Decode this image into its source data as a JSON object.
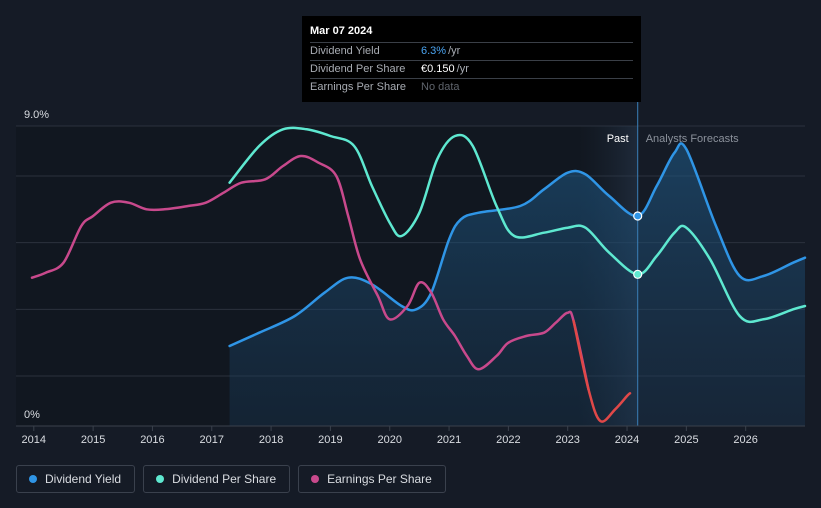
{
  "chart_data": {
    "type": "line",
    "y_axis": {
      "min": 0,
      "max": 9.0,
      "tick_labels": [
        "9.0%",
        "0%"
      ]
    },
    "x_axis": {
      "min": 2013.7,
      "max": 2027.0,
      "tick_labels": [
        "2014",
        "2015",
        "2016",
        "2017",
        "2018",
        "2019",
        "2020",
        "2021",
        "2022",
        "2023",
        "2024",
        "2025",
        "2026"
      ]
    },
    "grid": true,
    "past_label": "Past",
    "forecast_label": "Analysts Forecasts",
    "marker_x": 2024.18,
    "forecast_band_start": 2023.18,
    "series": [
      {
        "name": "Dividend Yield",
        "color": "#2f95e6",
        "points": [
          [
            2017.3,
            2.4
          ],
          [
            2017.8,
            2.8
          ],
          [
            2018.4,
            3.3
          ],
          [
            2018.9,
            4.0
          ],
          [
            2019.3,
            4.45
          ],
          [
            2019.7,
            4.25
          ],
          [
            2020.2,
            3.6
          ],
          [
            2020.45,
            3.5
          ],
          [
            2020.7,
            4.0
          ],
          [
            2021.0,
            5.6
          ],
          [
            2021.2,
            6.2
          ],
          [
            2021.5,
            6.4
          ],
          [
            2022.2,
            6.6
          ],
          [
            2022.6,
            7.1
          ],
          [
            2023.0,
            7.6
          ],
          [
            2023.3,
            7.55
          ],
          [
            2023.7,
            6.9
          ],
          [
            2024.18,
            6.3
          ],
          [
            2024.5,
            7.2
          ],
          [
            2024.8,
            8.2
          ],
          [
            2025.0,
            8.3
          ],
          [
            2025.5,
            6.0
          ],
          [
            2025.9,
            4.5
          ],
          [
            2026.3,
            4.5
          ],
          [
            2026.8,
            4.9
          ],
          [
            2027.0,
            5.05
          ]
        ]
      },
      {
        "name": "Dividend Per Share",
        "color": "#5ee8d0",
        "points": [
          [
            2017.3,
            7.3
          ],
          [
            2017.8,
            8.4
          ],
          [
            2018.2,
            8.9
          ],
          [
            2018.6,
            8.9
          ],
          [
            2019.0,
            8.7
          ],
          [
            2019.4,
            8.4
          ],
          [
            2019.7,
            7.2
          ],
          [
            2020.0,
            6.1
          ],
          [
            2020.2,
            5.7
          ],
          [
            2020.5,
            6.4
          ],
          [
            2020.8,
            8.0
          ],
          [
            2021.1,
            8.7
          ],
          [
            2021.4,
            8.4
          ],
          [
            2021.8,
            6.6
          ],
          [
            2022.1,
            5.7
          ],
          [
            2022.6,
            5.8
          ],
          [
            2023.0,
            5.95
          ],
          [
            2023.3,
            5.95
          ],
          [
            2023.7,
            5.2
          ],
          [
            2024.18,
            4.55
          ],
          [
            2024.5,
            5.1
          ],
          [
            2024.8,
            5.8
          ],
          [
            2025.0,
            5.95
          ],
          [
            2025.4,
            5.0
          ],
          [
            2025.9,
            3.3
          ],
          [
            2026.3,
            3.2
          ],
          [
            2026.8,
            3.5
          ],
          [
            2027.0,
            3.6
          ]
        ]
      },
      {
        "name": "Earnings Per Share",
        "color": "#c8498c",
        "points": [
          [
            2013.97,
            4.45
          ],
          [
            2014.2,
            4.6
          ],
          [
            2014.5,
            4.9
          ],
          [
            2014.8,
            6.0
          ],
          [
            2015.0,
            6.3
          ],
          [
            2015.3,
            6.7
          ],
          [
            2015.6,
            6.7
          ],
          [
            2015.9,
            6.5
          ],
          [
            2016.2,
            6.5
          ],
          [
            2016.6,
            6.6
          ],
          [
            2016.9,
            6.7
          ],
          [
            2017.2,
            7.0
          ],
          [
            2017.5,
            7.3
          ],
          [
            2017.9,
            7.4
          ],
          [
            2018.2,
            7.8
          ],
          [
            2018.5,
            8.1
          ],
          [
            2018.8,
            7.9
          ],
          [
            2019.1,
            7.5
          ],
          [
            2019.3,
            6.3
          ],
          [
            2019.5,
            5.0
          ],
          [
            2019.8,
            3.9
          ],
          [
            2020.0,
            3.2
          ],
          [
            2020.3,
            3.6
          ],
          [
            2020.5,
            4.3
          ],
          [
            2020.7,
            4.0
          ],
          [
            2020.9,
            3.2
          ],
          [
            2021.1,
            2.7
          ],
          [
            2021.3,
            2.1
          ],
          [
            2021.5,
            1.7
          ],
          [
            2021.8,
            2.1
          ],
          [
            2022.0,
            2.5
          ],
          [
            2022.3,
            2.7
          ],
          [
            2022.6,
            2.8
          ],
          [
            2022.8,
            3.1
          ],
          [
            2023.0,
            3.4
          ],
          [
            2023.1,
            3.15
          ],
          [
            2023.35,
            1.1
          ],
          [
            2023.55,
            0.15
          ],
          [
            2023.8,
            0.5
          ],
          [
            2024.0,
            0.9
          ],
          [
            2024.05,
            0.98
          ]
        ]
      }
    ],
    "eps_recent_color": "#e04848",
    "eps_recent_from": 2023.3,
    "highlight_points": [
      {
        "series": "Dividend Yield",
        "x": 2024.18,
        "y": 6.3,
        "color": "#2f95e6"
      },
      {
        "series": "Dividend Per Share",
        "x": 2024.18,
        "y": 4.55,
        "color": "#5ee8d0"
      }
    ]
  },
  "tooltip": {
    "date": "Mar 07 2024",
    "rows": [
      {
        "label": "Dividend Yield",
        "value": "6.3%",
        "unit": "/yr"
      },
      {
        "label": "Dividend Per Share",
        "value": "€0.150",
        "unit": "/yr"
      },
      {
        "label": "Earnings Per Share",
        "value": "No data",
        "unit": ""
      }
    ]
  },
  "legend": [
    {
      "label": "Dividend Yield",
      "color": "#2f95e6"
    },
    {
      "label": "Dividend Per Share",
      "color": "#5ee8d0"
    },
    {
      "label": "Earnings Per Share",
      "color": "#c8498c"
    }
  ]
}
